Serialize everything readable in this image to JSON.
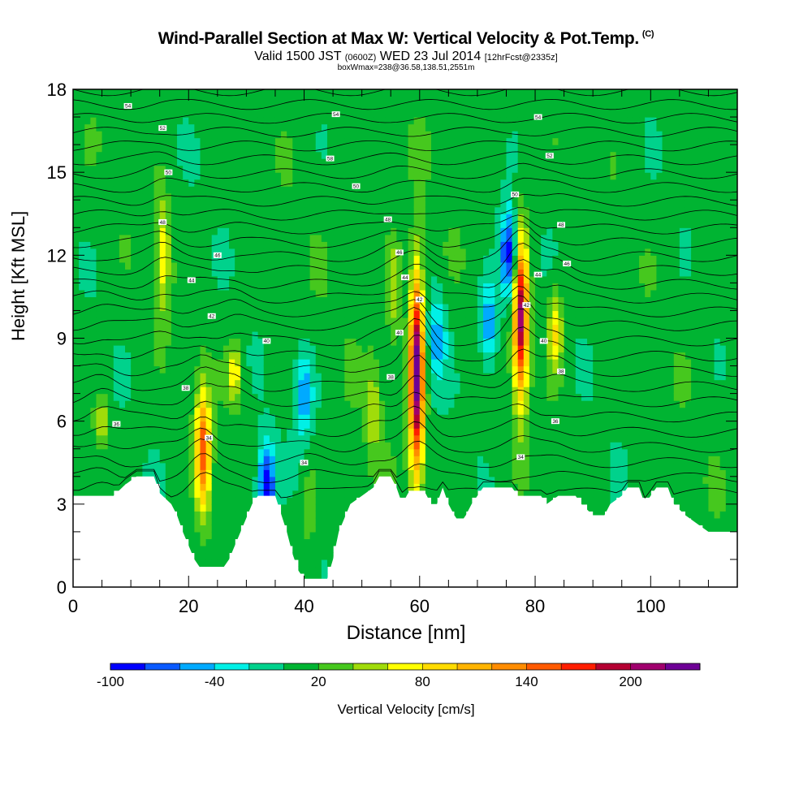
{
  "header": {
    "title": "Wind-Parallel Section at Max W: Vertical Velocity & Pot.Temp.",
    "copyright": "(C)",
    "valid_prefix": "Valid 1500 JST",
    "valid_utc": "(0600Z)",
    "valid_date": "WED 23 Jul 2014",
    "forecast": "[12hrFcst@2335z]",
    "boxwmax": "boxWmax=238@36.58,138.51,2551m"
  },
  "colors": {
    "scale": [
      "#0000ff",
      "#0a5aff",
      "#00aaff",
      "#00f0e6",
      "#00d28c",
      "#00b432",
      "#46c81e",
      "#a0dc0a",
      "#ffff00",
      "#ffdc00",
      "#ffb400",
      "#ff8c00",
      "#ff5a00",
      "#ff1e00",
      "#b40032",
      "#a0006e",
      "#6e0096"
    ],
    "terrain": "#ffffff",
    "background": "#00b432"
  },
  "chart_data": {
    "type": "heatmap",
    "title": "Wind-Parallel Section at Max W: Vertical Velocity & Pot.Temp.",
    "xlabel": "Distance [nm]",
    "ylabel": "Height [Kft MSL]",
    "xlim": [
      0,
      115
    ],
    "ylim": [
      0,
      18
    ],
    "xticks": [
      "0",
      "20",
      "40",
      "60",
      "80",
      "100"
    ],
    "yticks": [
      "0",
      "3",
      "6",
      "9",
      "12",
      "15",
      "18"
    ],
    "colorbar": {
      "label": "Vertical Velocity [cm/s]",
      "levels": [
        -100,
        -80,
        -60,
        -40,
        -20,
        0,
        20,
        40,
        60,
        80,
        100,
        120,
        140,
        160,
        180,
        200,
        220,
        240
      ],
      "ticklabels": [
        "-100",
        "-40",
        "20",
        "80",
        "140",
        "200"
      ]
    },
    "terrain_kft": [
      [
        0,
        3.3
      ],
      [
        7,
        3.3
      ],
      [
        9,
        3.7
      ],
      [
        11,
        4.0
      ],
      [
        14,
        4.0
      ],
      [
        15,
        3.4
      ],
      [
        17,
        3.0
      ],
      [
        18,
        2.6
      ],
      [
        19,
        2.0
      ],
      [
        20,
        1.5
      ],
      [
        21,
        1.0
      ],
      [
        22,
        0.7
      ],
      [
        26,
        0.7
      ],
      [
        27,
        1.0
      ],
      [
        28,
        1.5
      ],
      [
        29,
        2.0
      ],
      [
        30,
        2.5
      ],
      [
        31,
        3.0
      ],
      [
        32,
        3.3
      ],
      [
        35,
        3.3
      ],
      [
        37,
        2.0
      ],
      [
        38,
        1.2
      ],
      [
        39,
        0.6
      ],
      [
        40,
        0.3
      ],
      [
        44,
        0.3
      ],
      [
        45,
        1.0
      ],
      [
        46,
        2.0
      ],
      [
        47,
        2.5
      ],
      [
        48,
        3.0
      ],
      [
        50,
        3.3
      ],
      [
        52,
        3.6
      ],
      [
        53,
        4.0
      ],
      [
        55,
        4.0
      ],
      [
        56,
        3.6
      ],
      [
        57,
        3.0
      ],
      [
        58,
        3.4
      ],
      [
        61,
        3.4
      ],
      [
        62,
        3.0
      ],
      [
        63,
        3.0
      ],
      [
        64,
        3.6
      ],
      [
        65,
        3.0
      ],
      [
        66,
        2.6
      ],
      [
        67,
        2.3
      ],
      [
        68,
        2.6
      ],
      [
        69,
        3.0
      ],
      [
        70,
        3.3
      ],
      [
        71,
        3.6
      ],
      [
        76,
        3.6
      ],
      [
        77,
        3.3
      ],
      [
        81,
        3.3
      ],
      [
        82,
        3.0
      ],
      [
        84,
        3.3
      ],
      [
        87,
        3.3
      ],
      [
        88,
        3.0
      ],
      [
        90,
        2.6
      ],
      [
        92,
        2.6
      ],
      [
        93,
        3.0
      ],
      [
        95,
        3.3
      ],
      [
        96,
        3.6
      ],
      [
        98,
        3.6
      ],
      [
        99,
        3.0
      ],
      [
        101,
        3.6
      ],
      [
        103,
        3.6
      ],
      [
        104,
        3.0
      ],
      [
        106,
        2.6
      ],
      [
        108,
        2.3
      ],
      [
        110,
        2.0
      ],
      [
        115,
        2.0
      ]
    ],
    "updrafts": [
      {
        "x": 59.5,
        "z_bottom": 3.4,
        "z_top": 12.0,
        "wmax": 238
      },
      {
        "x": 77.5,
        "z_bottom": 6.3,
        "z_top": 13.3,
        "wmax": 210
      },
      {
        "x": 22.5,
        "z_bottom": 2.3,
        "z_top": 7.5,
        "wmax": 150
      },
      {
        "x": 15.5,
        "z_bottom": 9.5,
        "z_top": 14.5,
        "wmax": 70
      },
      {
        "x": 83.5,
        "z_bottom": 7.5,
        "z_top": 11.0,
        "wmax": 85
      },
      {
        "x": 28.0,
        "z_bottom": 6.5,
        "z_top": 9.0,
        "wmax": 75
      },
      {
        "x": 5.0,
        "z_bottom": 5.0,
        "z_top": 7.0,
        "wmax": 65
      },
      {
        "x": 55.5,
        "z_bottom": 8.5,
        "z_top": 13.0,
        "wmax": 60
      },
      {
        "x": 52.0,
        "z_bottom": 4.5,
        "z_top": 8.5,
        "wmax": 55
      },
      {
        "x": 41.0,
        "z_bottom": 1.0,
        "z_top": 5.0,
        "wmax": 35
      }
    ],
    "downdrafts": [
      {
        "x": 33.5,
        "z_center": 3.6,
        "wmin": -100
      },
      {
        "x": 75.5,
        "z_center": 12.0,
        "wmin": -100
      },
      {
        "x": 72.0,
        "z_center": 9.5,
        "wmin": -60
      },
      {
        "x": 63.0,
        "z_center": 9.0,
        "wmin": -50
      },
      {
        "x": 40.0,
        "z_center": 7.0,
        "wmin": -50
      }
    ],
    "theta_labels": [
      {
        "text": "54",
        "x": 9.5,
        "z": 17.4
      },
      {
        "text": "54",
        "x": 45.5,
        "z": 17.1
      },
      {
        "text": "54",
        "x": 80.5,
        "z": 17.0
      },
      {
        "text": "52",
        "x": 15.5,
        "z": 16.6
      },
      {
        "text": "50",
        "x": 16.5,
        "z": 15.0
      },
      {
        "text": "48",
        "x": 15.5,
        "z": 13.2
      },
      {
        "text": "46",
        "x": 25.0,
        "z": 12.0
      },
      {
        "text": "44",
        "x": 20.5,
        "z": 11.1
      },
      {
        "text": "42",
        "x": 24.0,
        "z": 9.8
      },
      {
        "text": "40",
        "x": 33.5,
        "z": 8.9
      },
      {
        "text": "38",
        "x": 19.5,
        "z": 7.2
      },
      {
        "text": "36",
        "x": 7.5,
        "z": 5.9
      },
      {
        "text": "34",
        "x": 23.5,
        "z": 5.4
      },
      {
        "text": "34",
        "x": 40.0,
        "z": 4.5
      },
      {
        "text": "58",
        "x": 44.5,
        "z": 15.5
      },
      {
        "text": "50",
        "x": 49.0,
        "z": 14.5
      },
      {
        "text": "48",
        "x": 54.5,
        "z": 13.3
      },
      {
        "text": "46",
        "x": 56.5,
        "z": 12.1
      },
      {
        "text": "44",
        "x": 57.5,
        "z": 11.2
      },
      {
        "text": "42",
        "x": 60.0,
        "z": 10.4
      },
      {
        "text": "40",
        "x": 56.5,
        "z": 9.2
      },
      {
        "text": "38",
        "x": 55.0,
        "z": 7.6
      },
      {
        "text": "52",
        "x": 82.5,
        "z": 15.6
      },
      {
        "text": "50",
        "x": 76.5,
        "z": 14.2
      },
      {
        "text": "48",
        "x": 84.5,
        "z": 13.1
      },
      {
        "text": "46",
        "x": 85.5,
        "z": 11.7
      },
      {
        "text": "44",
        "x": 80.5,
        "z": 11.3
      },
      {
        "text": "42",
        "x": 78.5,
        "z": 10.2
      },
      {
        "text": "40",
        "x": 81.5,
        "z": 8.9
      },
      {
        "text": "38",
        "x": 84.5,
        "z": 7.8
      },
      {
        "text": "36",
        "x": 83.5,
        "z": 6.0
      },
      {
        "text": "34",
        "x": 77.5,
        "z": 4.7
      }
    ]
  }
}
